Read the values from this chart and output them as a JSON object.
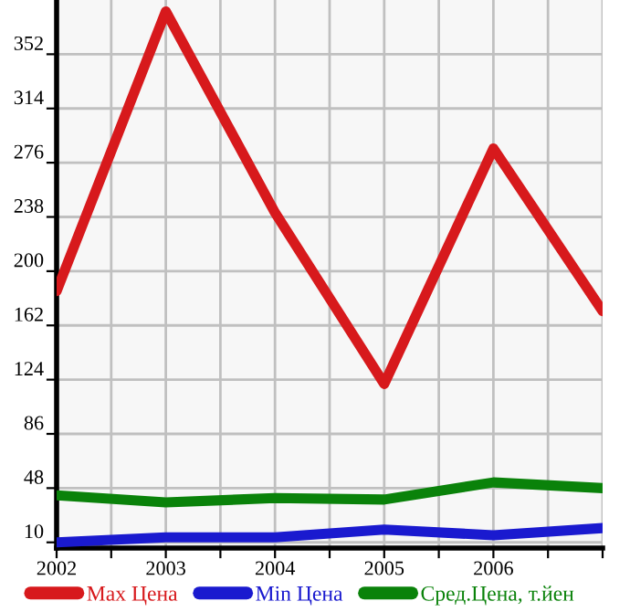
{
  "chart_data": {
    "type": "line",
    "x": [
      2002,
      2003,
      2004,
      2005,
      2006,
      2007
    ],
    "series": [
      {
        "name": "Max Цена",
        "color": "#d7191c",
        "values": [
          186,
          382,
          241,
          121,
          286,
          172
        ]
      },
      {
        "name": "Min Цена",
        "color": "#1a1acf",
        "values": [
          10,
          13.5,
          13.5,
          19,
          15,
          20
        ]
      },
      {
        "name": "Сред.Цена, т.йен",
        "color": "#0a820a",
        "values": [
          43,
          38,
          41,
          40,
          52,
          48
        ]
      }
    ],
    "xlim": [
      2002,
      2007
    ],
    "xticks": [
      2002,
      {
        "value": 2002.5,
        "label": null
      },
      2003,
      {
        "value": 2003.5,
        "label": null
      },
      2004,
      {
        "value": 2004.5,
        "label": null
      },
      2005,
      {
        "value": 2005.5,
        "label": null
      },
      2006,
      {
        "value": 2006.5,
        "label": null
      },
      {
        "value": 2007,
        "label": null
      }
    ],
    "ylim": [
      6,
      390
    ],
    "yticks": [
      10,
      48,
      86,
      124,
      162,
      200,
      238,
      276,
      314,
      352
    ],
    "grid": true,
    "legend": "bottom",
    "marker": "none",
    "line_style": "solid"
  }
}
